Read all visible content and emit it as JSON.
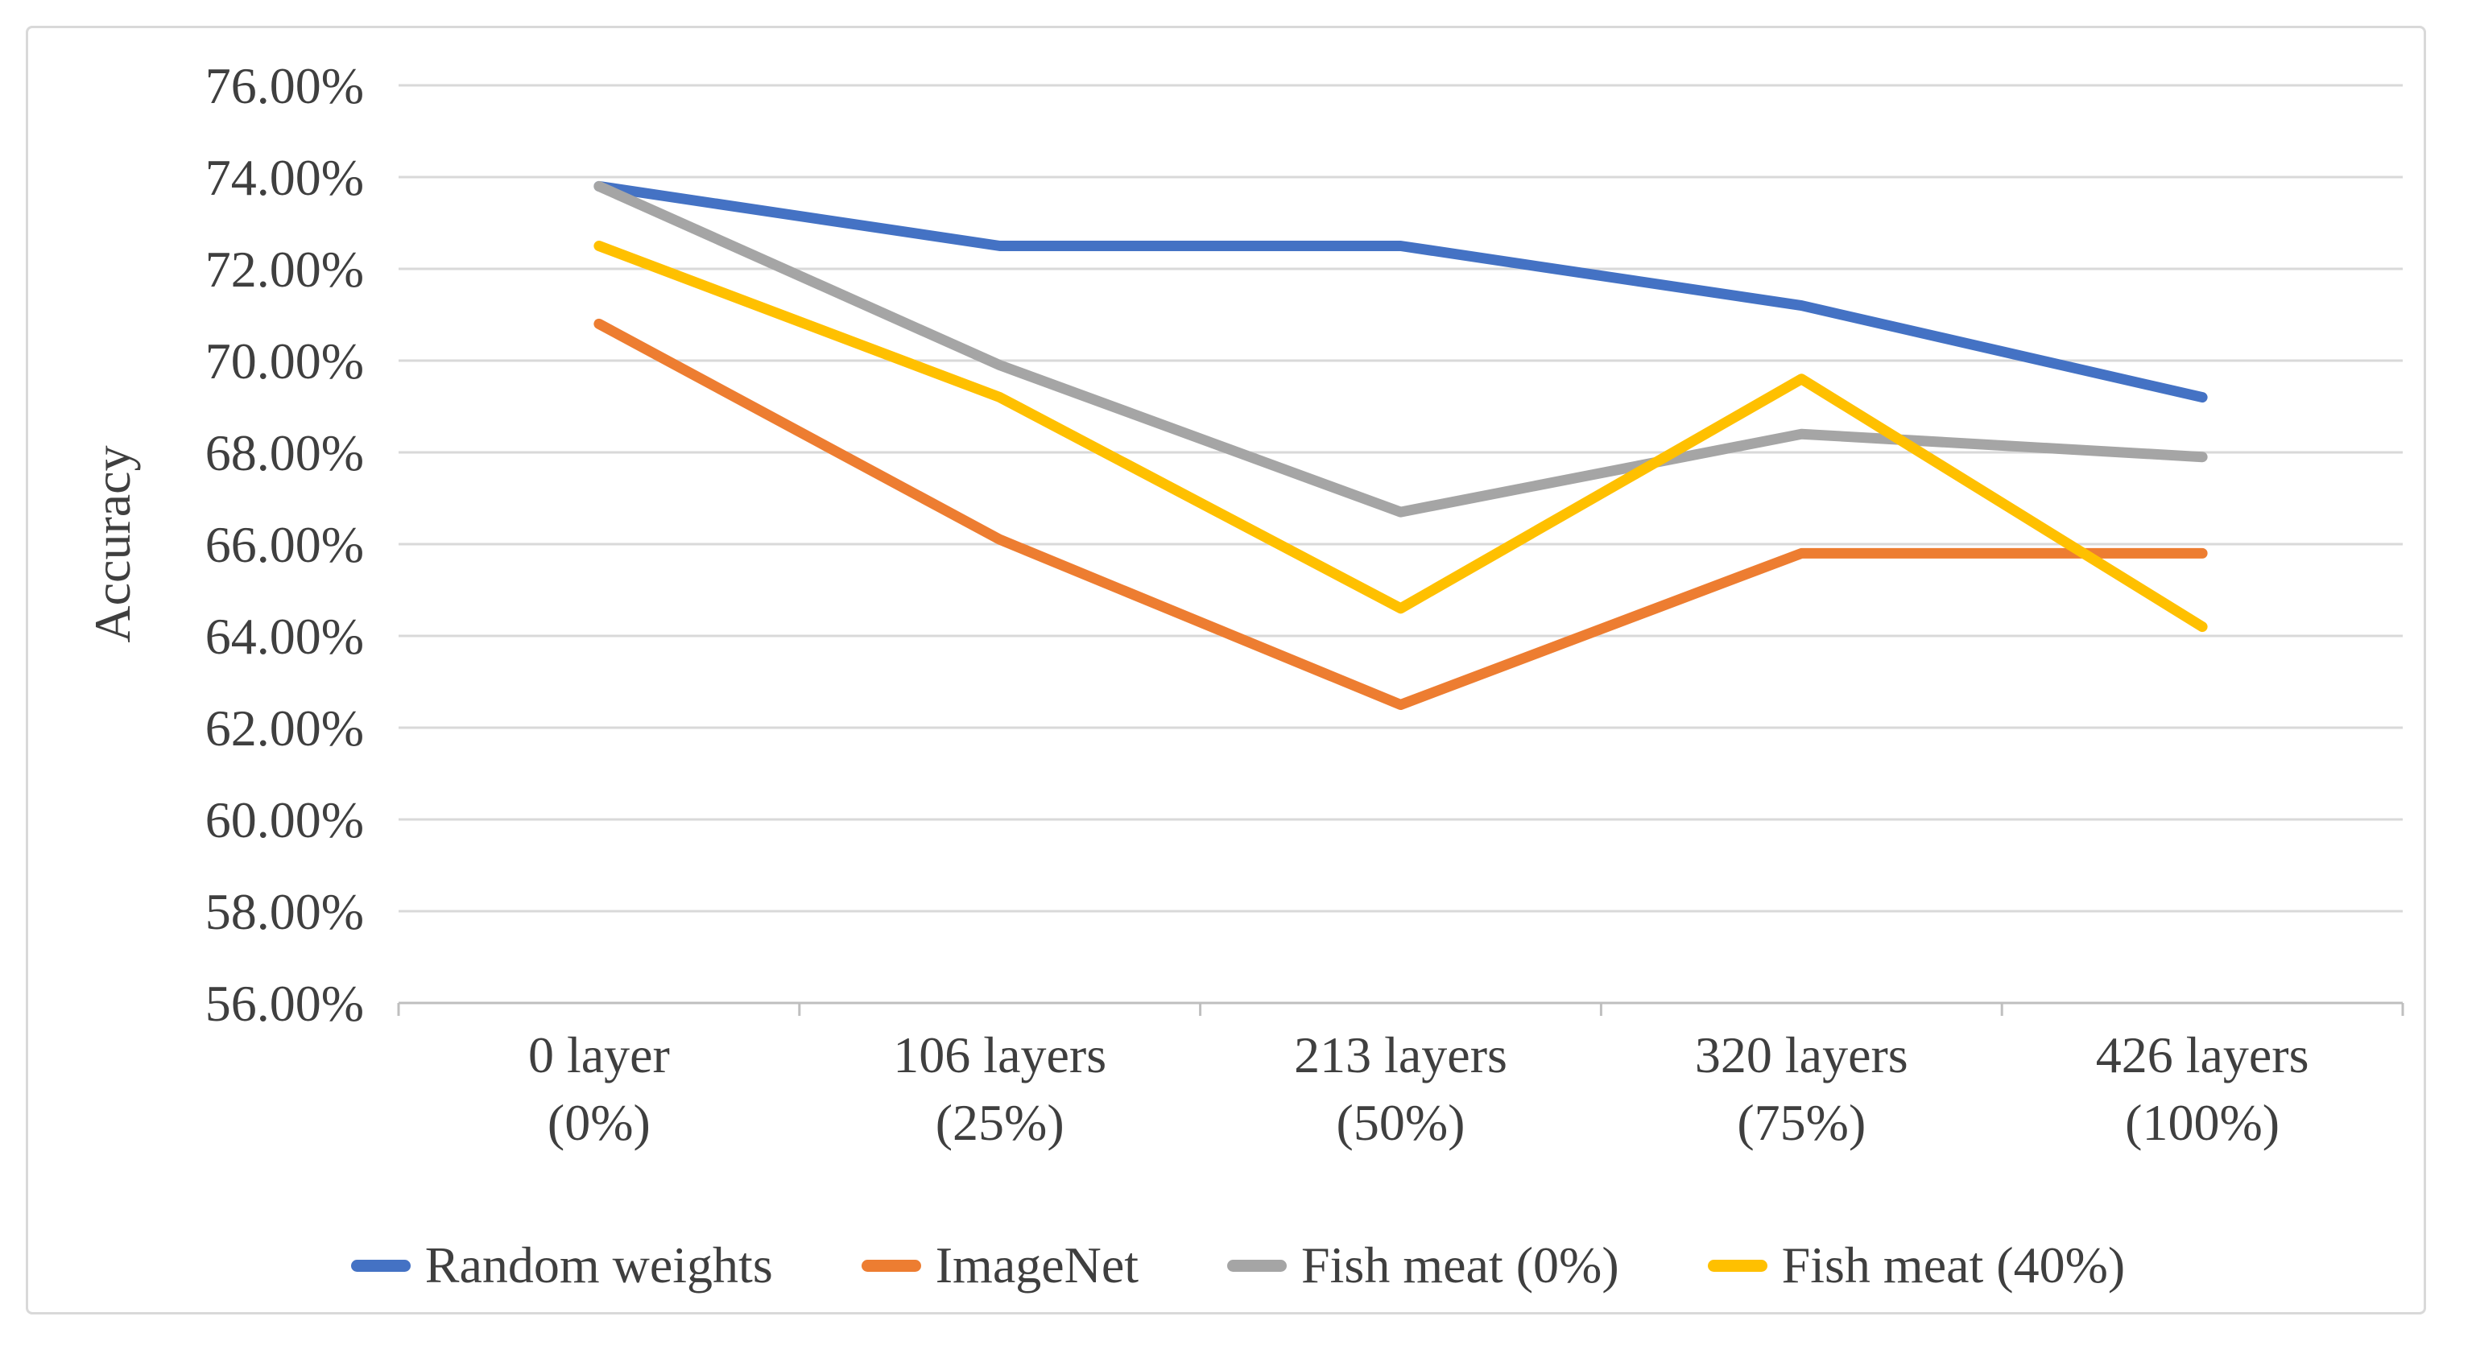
{
  "chart_data": {
    "type": "line",
    "title": "",
    "xlabel": "",
    "ylabel": "Accuracy",
    "ylim": [
      56,
      76
    ],
    "grid": true,
    "legend_position": "bottom",
    "y_ticks": [
      {
        "value": 76,
        "label": "76.00%"
      },
      {
        "value": 74,
        "label": "74.00%"
      },
      {
        "value": 72,
        "label": "72.00%"
      },
      {
        "value": 70,
        "label": "70.00%"
      },
      {
        "value": 68,
        "label": "68.00%"
      },
      {
        "value": 66,
        "label": "66.00%"
      },
      {
        "value": 64,
        "label": "64.00%"
      },
      {
        "value": 62,
        "label": "62.00%"
      },
      {
        "value": 60,
        "label": "60.00%"
      },
      {
        "value": 58,
        "label": "58.00%"
      },
      {
        "value": 56,
        "label": "56.00%"
      }
    ],
    "categories": [
      "0 layer",
      "106 layers",
      "213 layers",
      "320 layers",
      "426 layers"
    ],
    "category_sublabels": [
      "(0%)",
      "(25%)",
      "(50%)",
      "(75%)",
      "(100%)"
    ],
    "series": [
      {
        "name": "Random weights",
        "color": "#4472C4",
        "values": [
          73.8,
          72.5,
          72.5,
          71.2,
          69.2
        ]
      },
      {
        "name": "ImageNet",
        "color": "#ED7D31",
        "values": [
          70.8,
          66.1,
          62.5,
          65.8,
          65.8
        ]
      },
      {
        "name": "Fish meat (0%)",
        "color": "#A5A5A5",
        "values": [
          73.8,
          69.9,
          66.7,
          68.4,
          67.9
        ]
      },
      {
        "name": "Fish meat (40%)",
        "color": "#FFC000",
        "values": [
          72.5,
          69.2,
          64.6,
          69.6,
          64.2
        ]
      }
    ],
    "colors": {
      "gridline": "#D9D9D9",
      "axis_line": "#BFBFBF",
      "tick_mark": "#BFBFBF",
      "text": "#3F3F3F",
      "background": "#FFFFFF",
      "frame_border": "#D9D9D9"
    }
  }
}
